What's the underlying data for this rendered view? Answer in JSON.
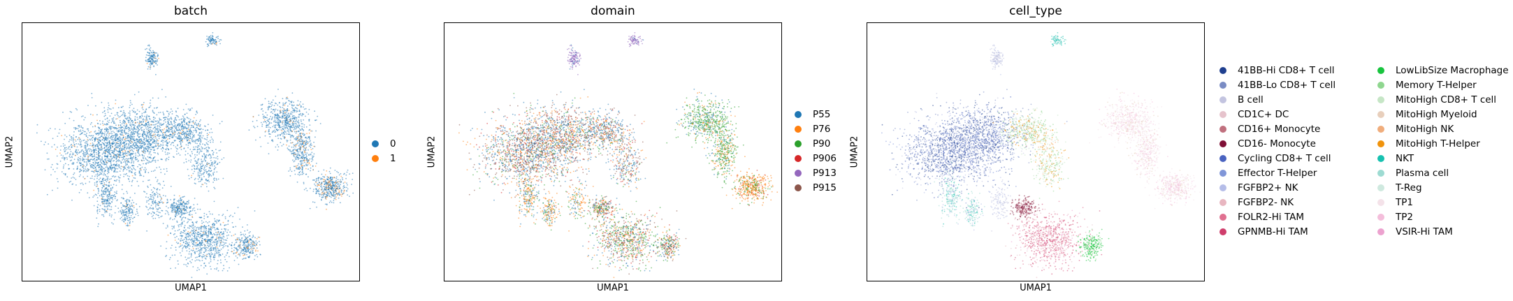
{
  "chart_data": [
    {
      "type": "scatter",
      "title": "batch",
      "xlabel": "UMAP1",
      "ylabel": "UMAP2",
      "legend_position": "right",
      "legend": [
        {
          "label": "0",
          "color": "#1f77b4"
        },
        {
          "label": "1",
          "color": "#ff7f0e"
        }
      ]
    },
    {
      "type": "scatter",
      "title": "domain",
      "xlabel": "UMAP1",
      "ylabel": "UMAP2",
      "legend_position": "right",
      "legend": [
        {
          "label": "P55",
          "color": "#1f77b4"
        },
        {
          "label": "P76",
          "color": "#ff7f0e"
        },
        {
          "label": "P90",
          "color": "#2ca02c"
        },
        {
          "label": "P906",
          "color": "#d62728"
        },
        {
          "label": "P913",
          "color": "#9467bd"
        },
        {
          "label": "P915",
          "color": "#8c564b"
        }
      ]
    },
    {
      "type": "scatter",
      "title": "cell_type",
      "xlabel": "UMAP1",
      "ylabel": "UMAP2",
      "legend_position": "right",
      "legend": [
        {
          "label": "41BB-Hi CD8+ T cell",
          "color": "#1f3f8f"
        },
        {
          "label": "41BB-Lo CD8+ T cell",
          "color": "#7a8cc4"
        },
        {
          "label": "B cell",
          "color": "#c3c4e0"
        },
        {
          "label": "CD1C+ DC",
          "color": "#e6c3cc"
        },
        {
          "label": "CD16+ Monocyte",
          "color": "#c0707e"
        },
        {
          "label": "CD16- Monocyte",
          "color": "#7f1036"
        },
        {
          "label": "Cycling CD8+ T cell",
          "color": "#4a63c0"
        },
        {
          "label": "Effector T-Helper",
          "color": "#8096d8"
        },
        {
          "label": "FGFBP2+ NK",
          "color": "#b5bde8"
        },
        {
          "label": "FGFBP2- NK",
          "color": "#e8b6c0"
        },
        {
          "label": "FOLR2-Hi TAM",
          "color": "#e07090"
        },
        {
          "label": "GPNMB-Hi TAM",
          "color": "#cf3e6c"
        },
        {
          "label": "LowLibSize Macrophage",
          "color": "#18c43e"
        },
        {
          "label": "Memory T-Helper",
          "color": "#8fd68f"
        },
        {
          "label": "MitoHigh CD8+ T cell",
          "color": "#c6e6c6"
        },
        {
          "label": "MitoHigh Myeloid",
          "color": "#e8cfbc"
        },
        {
          "label": "MitoHigh NK",
          "color": "#f0ad7c"
        },
        {
          "label": "MitoHigh T-Helper",
          "color": "#f0930c"
        },
        {
          "label": "NKT",
          "color": "#17c1b0"
        },
        {
          "label": "Plasma cell",
          "color": "#9ddbd2"
        },
        {
          "label": "T-Reg",
          "color": "#cfe9df"
        },
        {
          "label": "TP1",
          "color": "#f4e2e9"
        },
        {
          "label": "TP2",
          "color": "#f4bedb"
        },
        {
          "label": "VSIR-Hi TAM",
          "color": "#eca2cf"
        }
      ]
    }
  ]
}
